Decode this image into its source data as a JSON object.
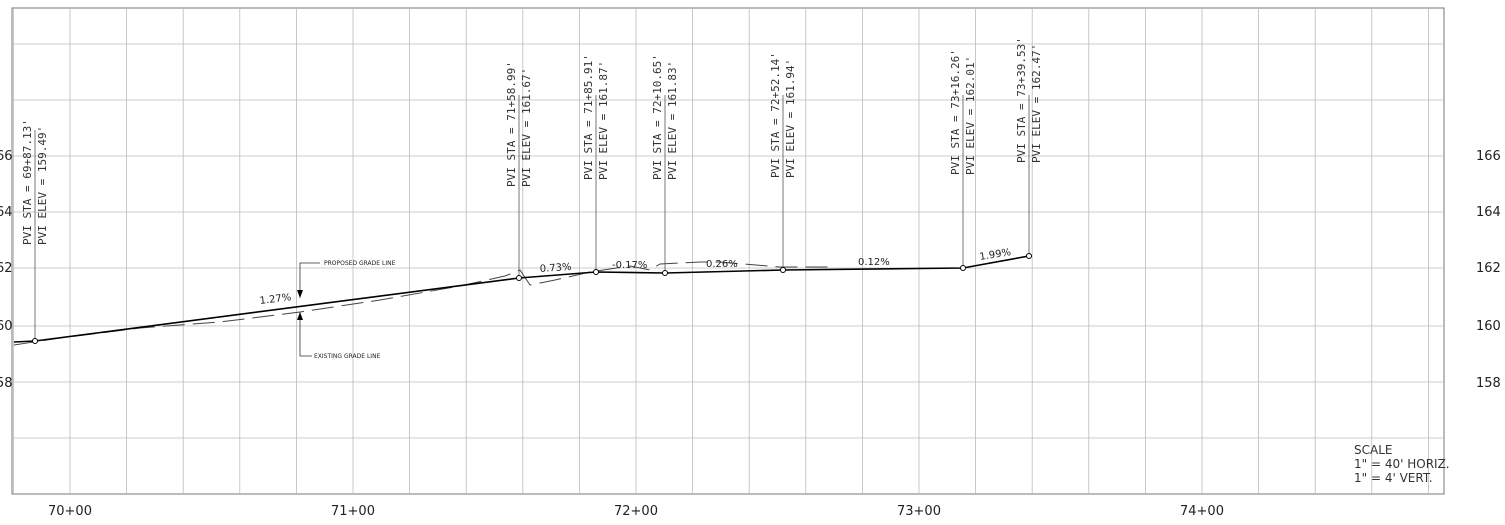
{
  "station_axis": {
    "ticks": [
      "70+00",
      "71+00",
      "72+00",
      "73+00",
      "74+00"
    ]
  },
  "elevation_axis": {
    "left_ticks": [
      "66",
      "64",
      "62",
      "60",
      "58"
    ],
    "right_ticks": [
      "166",
      "164",
      "162",
      "160",
      "158"
    ]
  },
  "pvis": [
    {
      "sta": "PVI STA = 69+87.13'",
      "elev": "PVI ELEV = 159.49'"
    },
    {
      "sta": "PVI STA = 71+58.99'",
      "elev": "PVI ELEV = 161.67'"
    },
    {
      "sta": "PVI STA = 71+85.91'",
      "elev": "PVI ELEV = 161.87'"
    },
    {
      "sta": "PVI STA = 72+10.65'",
      "elev": "PVI ELEV = 161.83'"
    },
    {
      "sta": "PVI STA = 72+52.14'",
      "elev": "PVI ELEV = 161.94'"
    },
    {
      "sta": "PVI STA = 73+16.26'",
      "elev": "PVI ELEV = 162.01'"
    },
    {
      "sta": "PVI STA = 73+39.53'",
      "elev": "PVI ELEV = 162.47'"
    }
  ],
  "grades": [
    "1.27%",
    "0.73%",
    "-0.17%",
    "0.26%",
    "0.12%",
    "1.99%"
  ],
  "callouts": {
    "proposed": "PROPOSED GRADE LINE",
    "existing": "EXISTING GRADE LINE"
  },
  "scale": {
    "title": "SCALE",
    "horiz": "1\" = 40' HORIZ.",
    "vert": "1\" = 4' VERT."
  }
}
